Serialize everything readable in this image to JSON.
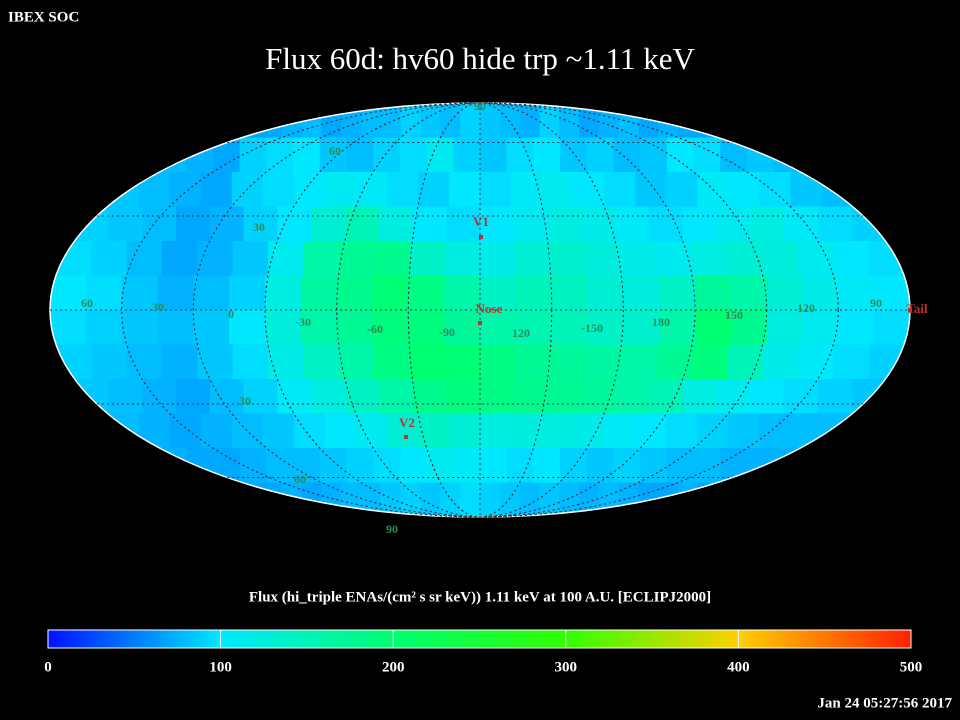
{
  "header": {
    "org": "IBEX SOC",
    "timestamp": "Jan 24 05:27:56 2017"
  },
  "chart_data": {
    "type": "heatmap",
    "title": "Flux   60d: hv60 hide trp ~1.11 keV",
    "colorbar_label": "Flux (hi_triple ENAs/(cm² s sr keV))  1.11 keV at 100 A.U. [ECLIPJ2000]",
    "clim": [
      0,
      500
    ],
    "cticks": [
      0,
      100,
      200,
      300,
      400,
      500
    ],
    "colormap": [
      {
        "value": 0,
        "color": "#0010ff"
      },
      {
        "value": 100,
        "color": "#00e8ff"
      },
      {
        "value": 200,
        "color": "#00ff70"
      },
      {
        "value": 300,
        "color": "#30ff00"
      },
      {
        "value": 400,
        "color": "#ffd000"
      },
      {
        "value": 500,
        "color": "#ff2000"
      }
    ],
    "values": [
      [
        70,
        70,
        75,
        80,
        70,
        75,
        80,
        80,
        90,
        85,
        80,
        90,
        85,
        80,
        75,
        90,
        80,
        70,
        75,
        80,
        70,
        75,
        70,
        70
      ],
      [
        80,
        75,
        70,
        90,
        95,
        100,
        85,
        80,
        90,
        95,
        110,
        90,
        85,
        95,
        100,
        85,
        90,
        80,
        85,
        100,
        95,
        80,
        85,
        80
      ],
      [
        85,
        80,
        75,
        70,
        90,
        95,
        100,
        110,
        105,
        95,
        90,
        100,
        95,
        105,
        110,
        100,
        95,
        85,
        90,
        105,
        100,
        95,
        85,
        80
      ],
      [
        90,
        85,
        80,
        70,
        75,
        90,
        100,
        130,
        150,
        120,
        100,
        95,
        100,
        110,
        120,
        115,
        105,
        95,
        100,
        110,
        120,
        105,
        95,
        90
      ],
      [
        95,
        90,
        80,
        70,
        75,
        85,
        110,
        160,
        175,
        180,
        140,
        120,
        115,
        130,
        135,
        125,
        115,
        110,
        120,
        130,
        125,
        110,
        100,
        95
      ],
      [
        100,
        95,
        85,
        75,
        80,
        90,
        120,
        165,
        180,
        195,
        185,
        160,
        140,
        150,
        145,
        130,
        125,
        140,
        170,
        160,
        130,
        115,
        105,
        100
      ],
      [
        95,
        90,
        85,
        80,
        85,
        100,
        125,
        160,
        175,
        190,
        190,
        170,
        160,
        155,
        150,
        140,
        135,
        160,
        200,
        180,
        120,
        110,
        100,
        95
      ],
      [
        90,
        85,
        80,
        75,
        85,
        95,
        115,
        140,
        160,
        185,
        200,
        195,
        185,
        175,
        170,
        165,
        160,
        175,
        190,
        150,
        115,
        105,
        95,
        90
      ],
      [
        85,
        80,
        75,
        70,
        80,
        90,
        105,
        120,
        140,
        160,
        180,
        190,
        185,
        180,
        175,
        170,
        160,
        150,
        120,
        110,
        100,
        95,
        90,
        85
      ],
      [
        80,
        75,
        70,
        75,
        80,
        85,
        95,
        100,
        110,
        130,
        140,
        130,
        120,
        125,
        120,
        115,
        105,
        100,
        95,
        90,
        85,
        80,
        80,
        80
      ],
      [
        75,
        70,
        70,
        75,
        80,
        80,
        85,
        90,
        95,
        100,
        110,
        105,
        100,
        95,
        100,
        90,
        85,
        90,
        85,
        80,
        80,
        75,
        75,
        75
      ],
      [
        70,
        70,
        75,
        70,
        75,
        80,
        80,
        85,
        90,
        85,
        90,
        95,
        90,
        85,
        80,
        85,
        80,
        75,
        80,
        75,
        70,
        70,
        75,
        70
      ]
    ],
    "grid_labels": [
      "90",
      "60",
      "30",
      "60",
      "30",
      "0",
      "-30",
      "-60",
      "-90",
      "120",
      "-150",
      "180",
      "150",
      "120",
      "90",
      "30",
      "60",
      "90"
    ],
    "markers": [
      "V1",
      "Nose",
      "V2",
      "Tail"
    ]
  }
}
